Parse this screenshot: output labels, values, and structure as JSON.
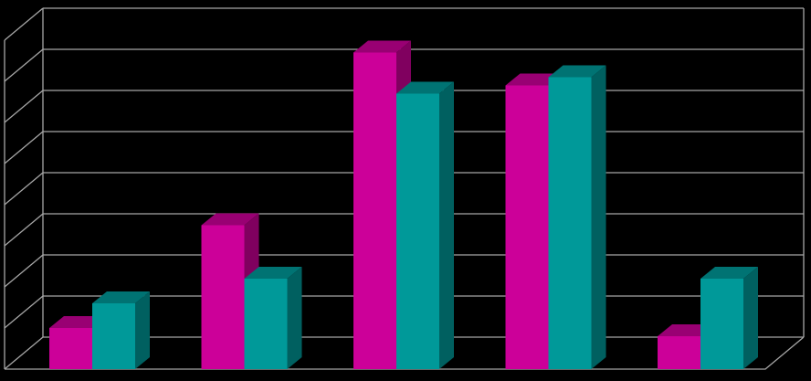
{
  "chart_data": {
    "type": "bar",
    "categories": [
      "",
      "",
      "",
      "",
      ""
    ],
    "series": [
      {
        "values": [
          1.0,
          3.5,
          7.7,
          6.9,
          0.8
        ]
      },
      {
        "values": [
          1.6,
          2.2,
          6.7,
          7.1,
          2.2
        ]
      }
    ],
    "ylim": [
      0,
      8
    ],
    "grid": true,
    "legend": "none",
    "colors": {
      "background": "#000000",
      "gridline": "#a6a6a6",
      "series": [
        "#cc0099",
        "#009999"
      ],
      "series_top": [
        "#990073",
        "#007373"
      ],
      "series_side": [
        "#80005f",
        "#006060"
      ]
    }
  }
}
